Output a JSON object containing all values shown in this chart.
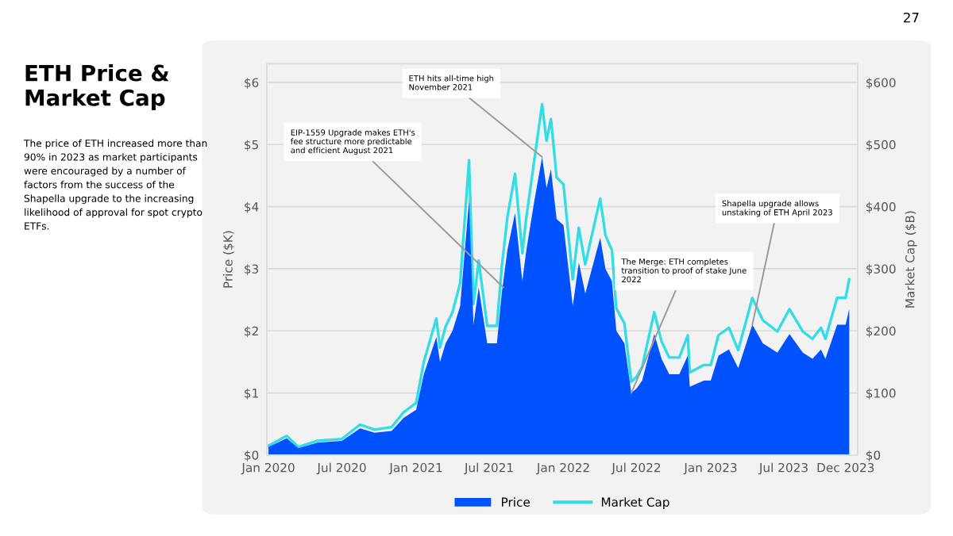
{
  "chart_data": {
    "type": "area",
    "title": "ETH Price & Market Cap",
    "subtitle": "The price of ETH increased more than 90% in 2023 as market participants were encouraged by a number of factors from the success of the Shapella upgrade to the increasing likelihood of approval for spot crypto ETFs.",
    "ylabel": "Price ($K)",
    "y2label": "Market Cap ($B)",
    "x": [
      "2020-01-01",
      "2020-02-15",
      "2020-03-15",
      "2020-05-01",
      "2020-07-01",
      "2020-08-15",
      "2020-09-20",
      "2020-11-01",
      "2020-12-01",
      "2021-01-01",
      "2021-01-20",
      "2021-02-20",
      "2021-03-01",
      "2021-03-15",
      "2021-04-01",
      "2021-04-20",
      "2021-05-12",
      "2021-05-23",
      "2021-06-05",
      "2021-06-26",
      "2021-07-20",
      "2021-08-01",
      "2021-08-15",
      "2021-09-03",
      "2021-09-21",
      "2021-10-01",
      "2021-10-21",
      "2021-11-09",
      "2021-11-20",
      "2021-12-01",
      "2021-12-15",
      "2022-01-01",
      "2022-01-24",
      "2022-02-08",
      "2022-02-24",
      "2022-04-02",
      "2022-04-15",
      "2022-05-01",
      "2022-05-12",
      "2022-06-01",
      "2022-06-18",
      "2022-07-01",
      "2022-07-15",
      "2022-08-14",
      "2022-09-01",
      "2022-09-20",
      "2022-10-15",
      "2022-11-05",
      "2022-11-10",
      "2022-12-15",
      "2023-01-01",
      "2023-01-20",
      "2023-02-15",
      "2023-03-10",
      "2023-04-14",
      "2023-05-10",
      "2023-06-15",
      "2023-07-15",
      "2023-08-17",
      "2023-09-10",
      "2023-10-01",
      "2023-10-12",
      "2023-11-10",
      "2023-12-01",
      "2023-12-10"
    ],
    "series": [
      {
        "name": "Price",
        "type": "area",
        "color": "#0052ff",
        "values": [
          0.13,
          0.27,
          0.11,
          0.2,
          0.23,
          0.43,
          0.36,
          0.39,
          0.6,
          0.73,
          1.3,
          1.9,
          1.5,
          1.8,
          2.0,
          2.4,
          4.1,
          2.1,
          2.7,
          1.8,
          1.8,
          2.6,
          3.3,
          3.9,
          2.8,
          3.3,
          4.1,
          4.8,
          4.3,
          4.6,
          3.8,
          3.7,
          2.4,
          3.1,
          2.6,
          3.5,
          3.0,
          2.8,
          2.0,
          1.8,
          1.0,
          1.07,
          1.2,
          1.95,
          1.55,
          1.3,
          1.3,
          1.6,
          1.1,
          1.2,
          1.2,
          1.6,
          1.7,
          1.4,
          2.1,
          1.8,
          1.65,
          1.95,
          1.65,
          1.55,
          1.7,
          1.55,
          2.1,
          2.1,
          2.35
        ]
      },
      {
        "name": "Market Cap",
        "type": "line",
        "axis": "y2",
        "color": "#33dde6",
        "values": [
          15,
          31,
          13,
          23,
          26,
          49,
          41,
          45,
          69,
          84,
          150,
          220,
          173,
          207,
          230,
          277,
          475,
          243,
          313,
          208,
          208,
          302,
          383,
          453,
          325,
          383,
          476,
          565,
          506,
          541,
          447,
          436,
          283,
          366,
          307,
          413,
          354,
          330,
          236,
          212,
          118,
          126,
          142,
          230,
          183,
          157,
          157,
          193,
          133,
          145,
          145,
          193,
          205,
          169,
          253,
          217,
          199,
          235,
          199,
          187,
          205,
          187,
          253,
          253,
          283
        ]
      }
    ],
    "xlim": [
      "2019-12-28",
      "2023-12-31"
    ],
    "xticks": [
      {
        "value": "2020-01-01",
        "label": "Jan 2020"
      },
      {
        "value": "2020-07-01",
        "label": "Jul 2020"
      },
      {
        "value": "2021-01-01",
        "label": "Jan 2021"
      },
      {
        "value": "2021-07-01",
        "label": "Jul 2021"
      },
      {
        "value": "2022-01-01",
        "label": "Jan 2022"
      },
      {
        "value": "2022-07-01",
        "label": "Jul 2022"
      },
      {
        "value": "2023-01-01",
        "label": "Jan 2023"
      },
      {
        "value": "2023-07-01",
        "label": "Jul 2023"
      },
      {
        "value": "2023-12-01",
        "label": "Dec 2023"
      }
    ],
    "ylim": [
      0,
      6.3
    ],
    "yticks": [
      {
        "value": 0,
        "label": "$0"
      },
      {
        "value": 1,
        "label": "$1"
      },
      {
        "value": 2,
        "label": "$2"
      },
      {
        "value": 3,
        "label": "$3"
      },
      {
        "value": 4,
        "label": "$4"
      },
      {
        "value": 5,
        "label": "$5"
      },
      {
        "value": 6,
        "label": "$6"
      }
    ],
    "y2lim": [
      0,
      630
    ],
    "y2ticks": [
      {
        "value": 0,
        "label": "$0"
      },
      {
        "value": 100,
        "label": "$100"
      },
      {
        "value": 200,
        "label": "$200"
      },
      {
        "value": 300,
        "label": "$300"
      },
      {
        "value": 400,
        "label": "$400"
      },
      {
        "value": 500,
        "label": "$500"
      },
      {
        "value": 600,
        "label": "$600"
      }
    ],
    "grid": "y",
    "legend": "bottom",
    "annotations": [
      {
        "text": "ETH hits all-time high November 2021",
        "x": "2021-11-09",
        "y": 4.8
      },
      {
        "text": "EIP-1559 Upgrade makes ETH's fee structure more predictable and efficient August 2021",
        "x": "2021-08-05",
        "y": 2.7
      },
      {
        "text": "The Merge: ETH completes transition to proof of stake June 2022",
        "x": "2022-06-18",
        "y": 1.0
      },
      {
        "text": "Shapella upgrade allows unstaking of ETH April 2023",
        "x": "2023-04-14",
        "y": 2.1
      },
      "27"
    ]
  }
}
